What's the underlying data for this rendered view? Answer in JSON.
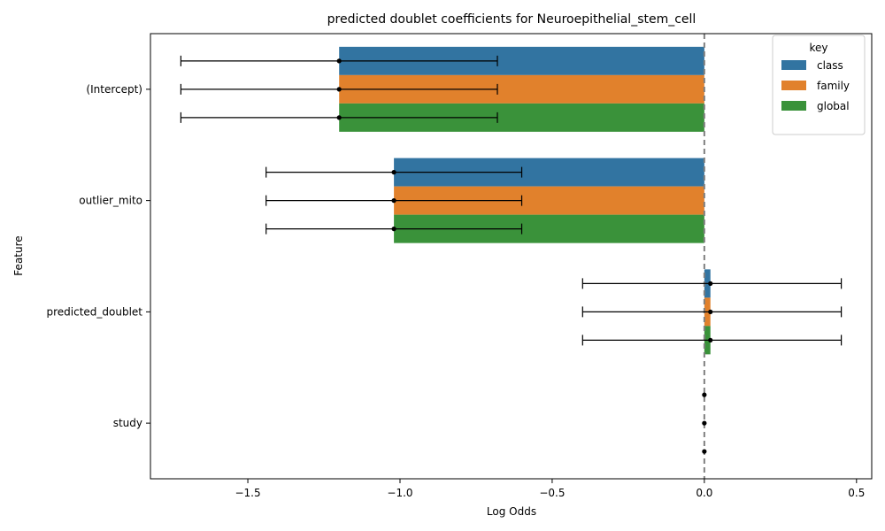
{
  "chart_data": {
    "type": "bar",
    "orientation": "horizontal",
    "title": "predicted doublet coefficients for Neuroepithelial_stem_cell",
    "xlabel": "Log Odds",
    "ylabel": "Feature",
    "categories": [
      "(Intercept)",
      "outlier_mito",
      "predicted_doublet",
      "study"
    ],
    "xlim": [
      -1.82,
      0.55
    ],
    "xticks": [
      -1.5,
      -1.0,
      -0.5,
      0.0,
      0.5
    ],
    "xtick_labels": [
      "−1.5",
      "−1.0",
      "−0.5",
      "0.0",
      "0.5"
    ],
    "reference_line": 0.0,
    "legend": {
      "title": "key",
      "position": "top-right"
    },
    "series": [
      {
        "name": "class",
        "color": "#3274a1",
        "values": [
          -1.2,
          -1.02,
          0.02,
          0.0
        ],
        "ci_low": [
          -1.72,
          -1.44,
          -0.4,
          0.0
        ],
        "ci_high": [
          -0.68,
          -0.6,
          0.45,
          0.0
        ]
      },
      {
        "name": "family",
        "color": "#e1812c",
        "values": [
          -1.2,
          -1.02,
          0.02,
          0.0
        ],
        "ci_low": [
          -1.72,
          -1.44,
          -0.4,
          0.0
        ],
        "ci_high": [
          -0.68,
          -0.6,
          0.45,
          0.0
        ]
      },
      {
        "name": "global",
        "color": "#3a923a",
        "values": [
          -1.2,
          -1.02,
          0.02,
          0.0
        ],
        "ci_low": [
          -1.72,
          -1.44,
          -0.4,
          0.0
        ],
        "ci_high": [
          -0.68,
          -0.6,
          0.45,
          0.0
        ]
      }
    ]
  }
}
